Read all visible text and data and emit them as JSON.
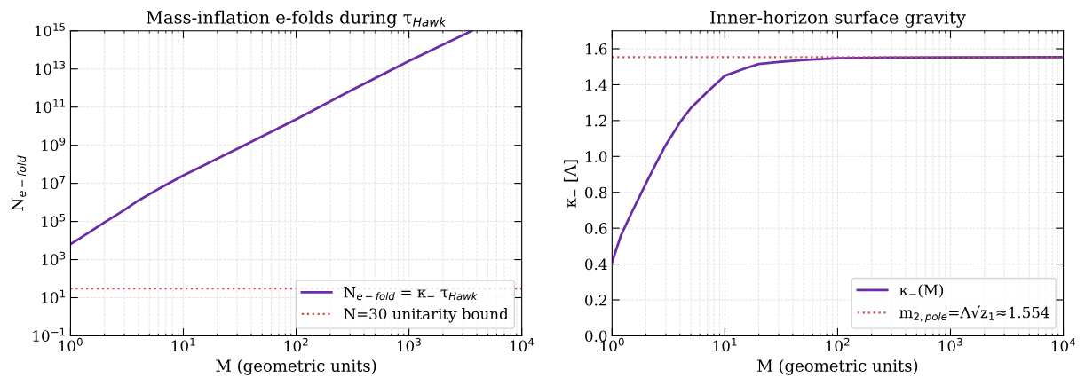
{
  "chart_data": [
    {
      "type": "line",
      "title": "Mass-inflation e-folds during τ$_{Hawk}$",
      "xlabel": "M (geometric units)",
      "ylabel": "N$_{e−fold}$",
      "log": "xy",
      "xlim": [
        1,
        10000
      ],
      "xticks": [
        {
          "value": 1,
          "label": "10$^{0}$"
        },
        {
          "value": 10,
          "label": "10$^{1}$"
        },
        {
          "value": 100,
          "label": "10$^{2}$"
        },
        {
          "value": 1000,
          "label": "10$^{3}$"
        },
        {
          "value": 10000,
          "label": "10$^{4}$"
        }
      ],
      "ylim": [
        0.1,
        1000000000000000.0
      ],
      "yticks": [
        {
          "value": 0.1,
          "label": "10$^{−1}$"
        },
        {
          "value": 10,
          "label": "10$^{1}$"
        },
        {
          "value": 1000,
          "label": "10$^{3}$"
        },
        {
          "value": 100000,
          "label": "10$^{5}$"
        },
        {
          "value": 10000000.0,
          "label": "10$^{7}$"
        },
        {
          "value": 1000000000.0,
          "label": "10$^{9}$"
        },
        {
          "value": 100000000000.0,
          "label": "10$^{11}$"
        },
        {
          "value": 10000000000000.0,
          "label": "10$^{13}$"
        },
        {
          "value": 1000000000000000.0,
          "label": "10$^{15}$"
        }
      ],
      "series": [
        {
          "name": "N$_{e−fold}$ = κ$_{−}$ τ$_{Hawk}$",
          "color": "#6a2ca8",
          "x": [
            1,
            1.2,
            1.5,
            2,
            3,
            4,
            6,
            10,
            30,
            100,
            300,
            1000,
            3600
          ],
          "values": [
            6500,
            12600,
            30000,
            89000,
            400000,
            1260000,
            5000000,
            26000000,
            650000000,
            23000000000,
            700000000000,
            26000000000000,
            1000000000000000.0
          ]
        }
      ],
      "ref_lines": [
        {
          "axis": "y",
          "value": 30,
          "label": "N=30 unitarity bound",
          "color": "#d24b4b",
          "line_style": "dotted"
        }
      ],
      "grid": true,
      "legend": "bottom right",
      "line_style": "solid",
      "marker": "none"
    },
    {
      "type": "line",
      "title": "Inner-horizon surface gravity",
      "xlabel": "M (geometric units)",
      "ylabel": "κ$_{−}$ [Λ]",
      "log": "x",
      "xlim": [
        1,
        10000
      ],
      "xticks": [
        {
          "value": 1,
          "label": "10$^{0}$"
        },
        {
          "value": 10,
          "label": "10$^{1}$"
        },
        {
          "value": 100,
          "label": "10$^{2}$"
        },
        {
          "value": 1000,
          "label": "10$^{3}$"
        },
        {
          "value": 10000,
          "label": "10$^{4}$"
        }
      ],
      "ylim": [
        0,
        1.7
      ],
      "yticks": [
        {
          "value": 0,
          "label": "0.0"
        },
        {
          "value": 0.2,
          "label": "0.2"
        },
        {
          "value": 0.4,
          "label": "0.4"
        },
        {
          "value": 0.6,
          "label": "0.6"
        },
        {
          "value": 0.8,
          "label": "0.8"
        },
        {
          "value": 1.0,
          "label": "1.0"
        },
        {
          "value": 1.2,
          "label": "1.2"
        },
        {
          "value": 1.4,
          "label": "1.4"
        },
        {
          "value": 1.6,
          "label": "1.6"
        }
      ],
      "series": [
        {
          "name": "κ$_{−}$(M)",
          "color": "#6a2ca8",
          "x": [
            1,
            1.2,
            1.5,
            2,
            2.5,
            3,
            4,
            5,
            7,
            10,
            15,
            20,
            30,
            50,
            100,
            300,
            1000,
            10000
          ],
          "values": [
            0.41,
            0.56,
            0.69,
            0.85,
            0.97,
            1.065,
            1.19,
            1.27,
            1.36,
            1.45,
            1.49,
            1.515,
            1.527,
            1.538,
            1.547,
            1.551,
            1.553,
            1.554
          ]
        }
      ],
      "ref_lines": [
        {
          "axis": "y",
          "value": 1.554,
          "label": "m$_{2,pole}$=Λ√z$_{1}$≈1.554",
          "color": "#d24b4b",
          "line_style": "dotted"
        }
      ],
      "grid": true,
      "legend": "bottom right",
      "line_style": "solid",
      "marker": "none"
    }
  ]
}
